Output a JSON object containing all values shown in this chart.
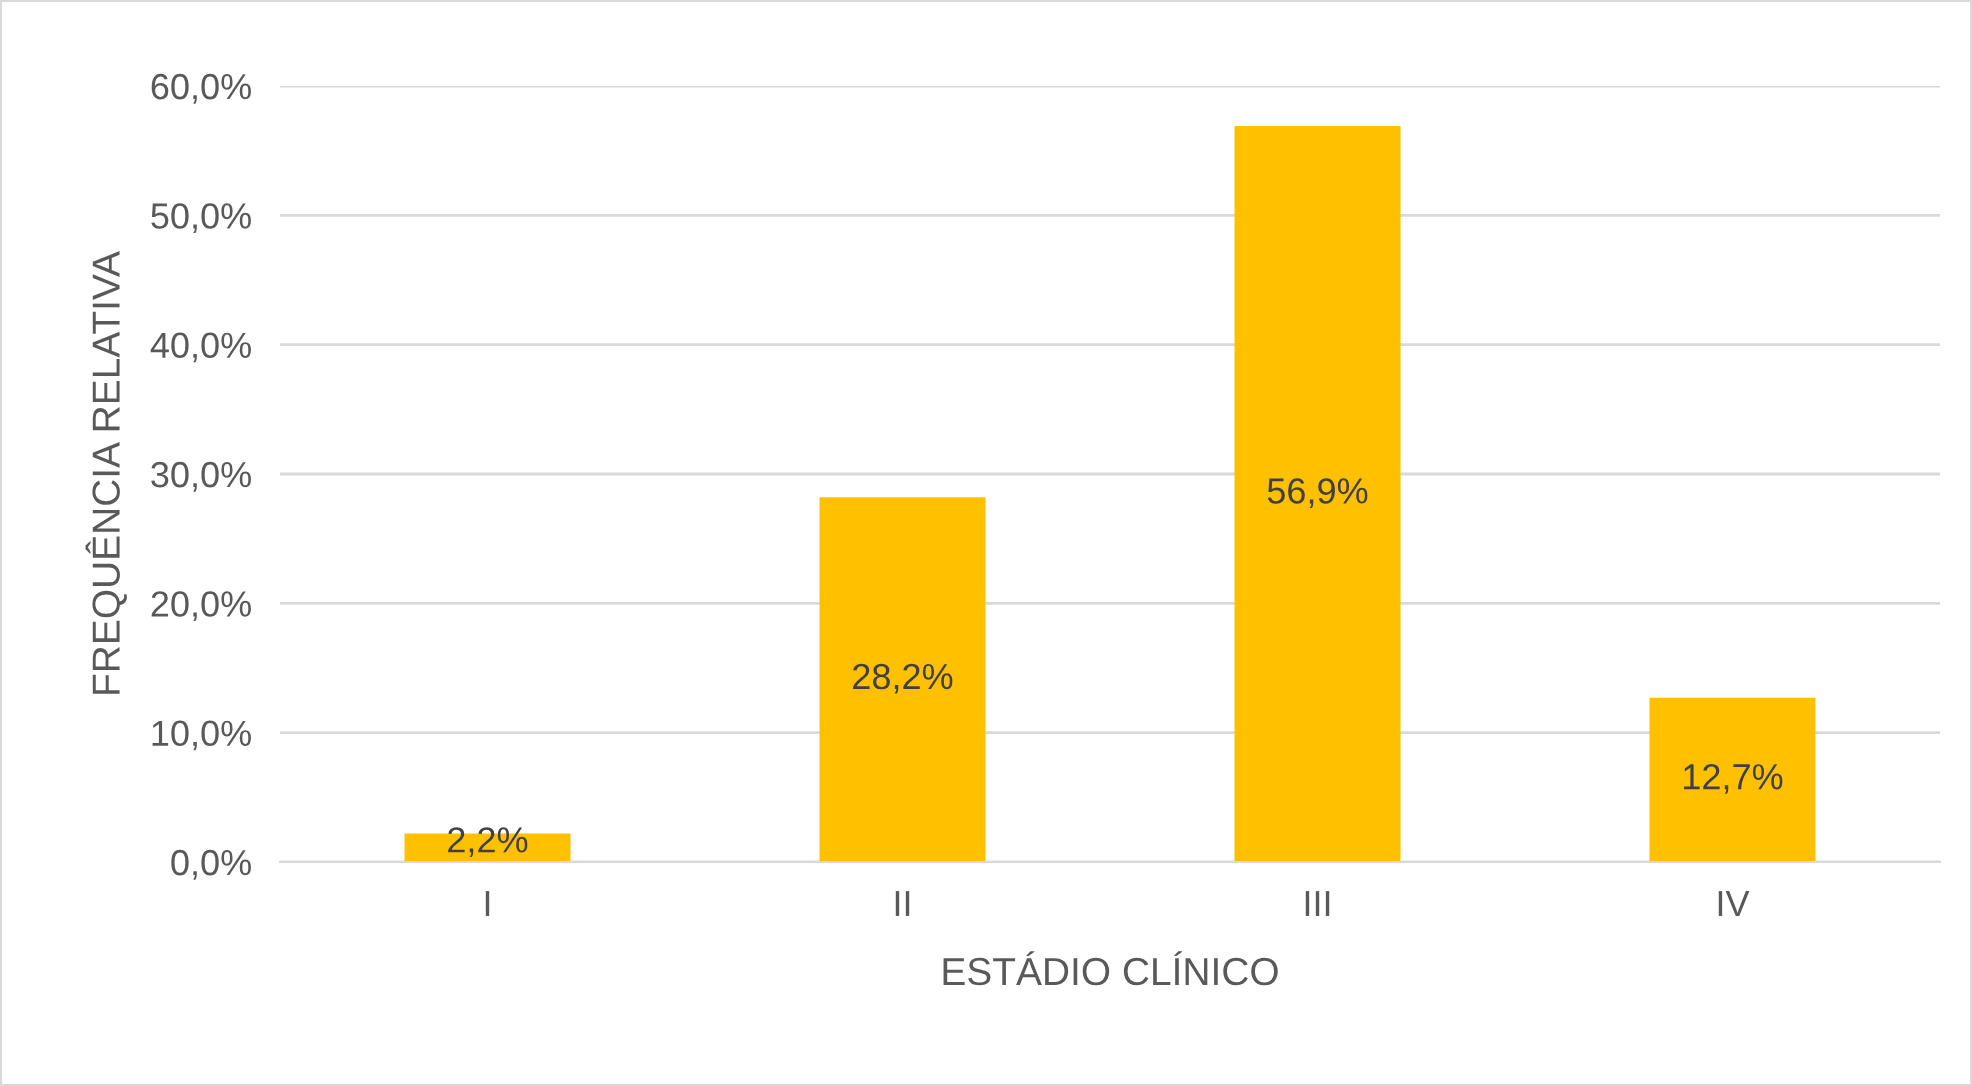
{
  "chart_data": {
    "type": "bar",
    "xlabel": "ESTÁDIO CLÍNICO",
    "ylabel": "FREQUÊNCIA RELATIVA",
    "categories": [
      "I",
      "II",
      "III",
      "IV"
    ],
    "values": [
      2.2,
      28.2,
      56.9,
      12.7
    ],
    "value_labels": [
      "2,2%",
      "28,2%",
      "56,9%",
      "12,7%"
    ],
    "color": "#ffc000",
    "ylim": [
      0,
      60
    ],
    "yticks": [
      {
        "value": 0,
        "label": "0,0%"
      },
      {
        "value": 10,
        "label": "10,0%"
      },
      {
        "value": 20,
        "label": "20,0%"
      },
      {
        "value": 30,
        "label": "30,0%"
      },
      {
        "value": 40,
        "label": "40,0%"
      },
      {
        "value": 50,
        "label": "50,0%"
      },
      {
        "value": 60,
        "label": "60,0%"
      }
    ],
    "grid": "y"
  }
}
